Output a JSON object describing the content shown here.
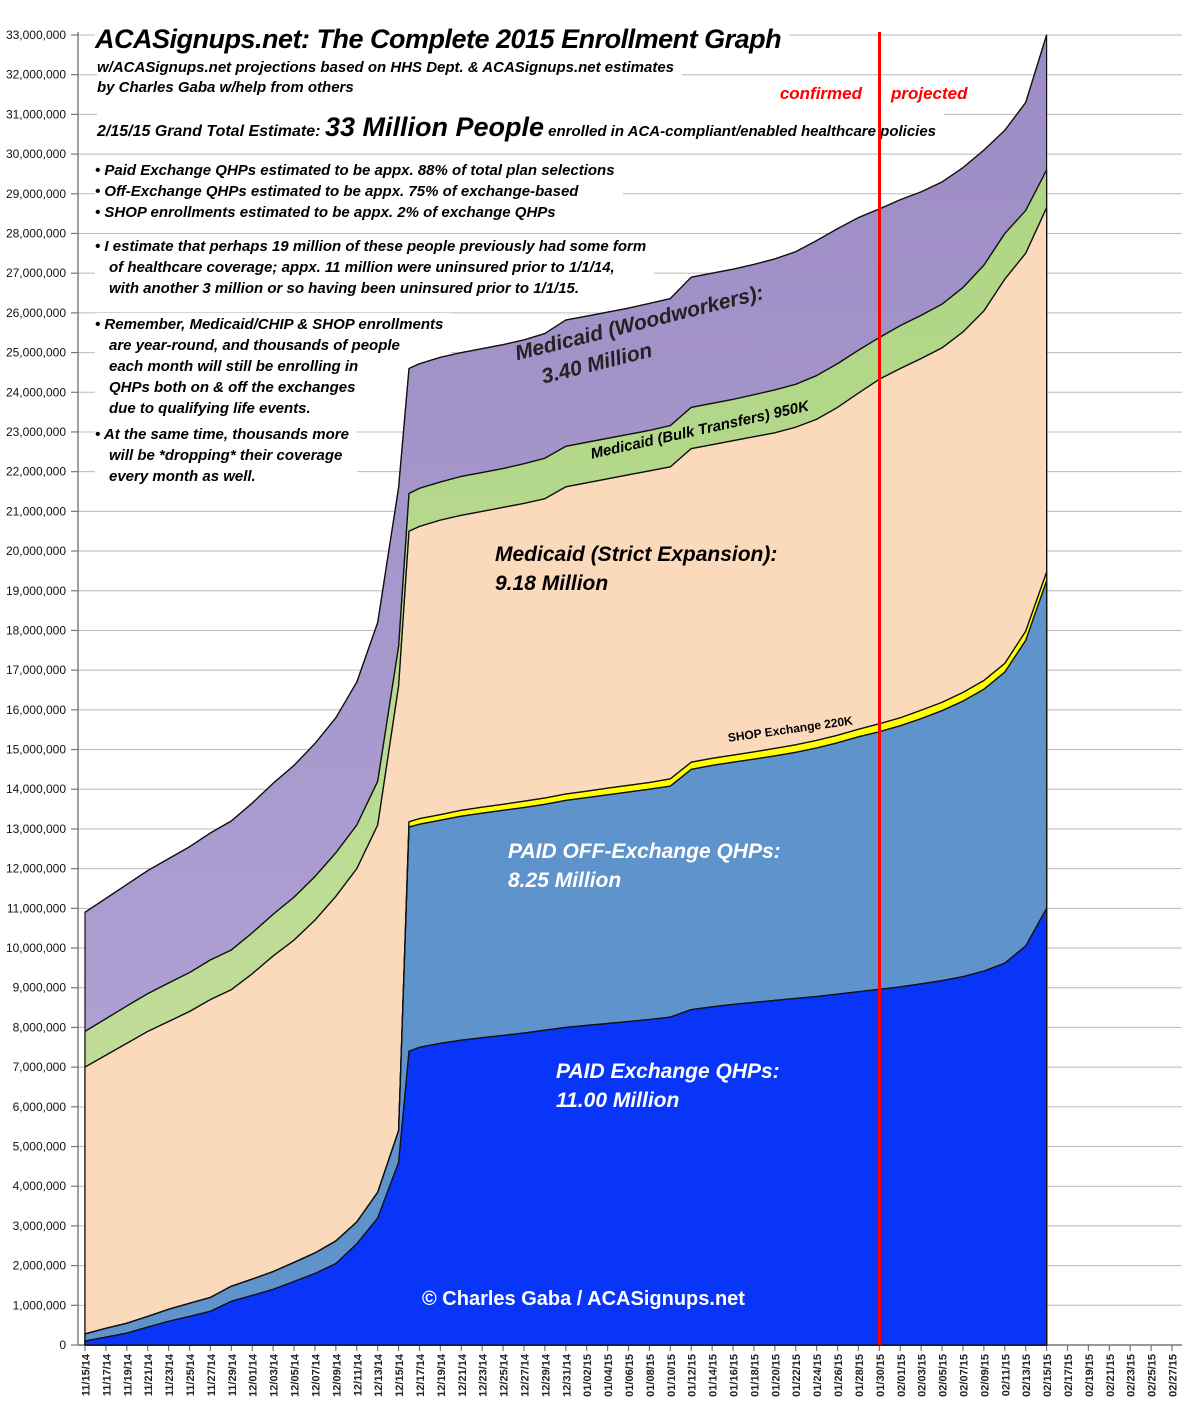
{
  "header": {
    "title": "ACASignups.net: The Complete 2015 Enrollment Graph",
    "subtitle1": "w/ACASignups.net projections based on HHS Dept. & ACASignups.net estimates",
    "subtitle2": "by Charles Gaba w/help from others",
    "confirmed_label": "confirmed",
    "projected_label": "projected",
    "total_prefix": "2/15/15 Grand Total Estimate: ",
    "total_big": "33 Million People",
    "total_suffix": " enrolled in ACA-compliant/enabled healthcare policies"
  },
  "notes": {
    "block1": [
      "• Paid Exchange QHPs estimated to be appx. 88% of total plan selections",
      "• Off-Exchange QHPs estimated to be appx. 75% of exchange-based",
      "• SHOP enrollments estimated to be appx. 2% of exchange QHPs"
    ],
    "block2": [
      "• I estimate that perhaps 19 million of these people previously had some form",
      "of healthcare coverage; appx. 11 million were uninsured prior to 1/1/14,",
      "with another 3 million or so having been uninsured prior to 1/1/15."
    ],
    "block3": [
      "• Remember, Medicaid/CHIP & SHOP enrollments",
      "are year-round, and thousands of people",
      "each month will still be enrolling in",
      "QHPs both on & off the exchanges",
      "due to qualifying life events."
    ],
    "block4": [
      "• At the same time, thousands more",
      "will be *dropping* their coverage",
      "every month as well."
    ]
  },
  "area_labels": {
    "woodworkers_1": "Medicaid (Woodworkers):",
    "woodworkers_2": "3.40 Million",
    "bulk": "Medicaid (Bulk Transfers) 950K",
    "strict_1": "Medicaid (Strict Expansion):",
    "strict_2": "9.18 Million",
    "shop": "SHOP Exchange 220K",
    "off_1": "PAID OFF-Exchange QHPs:",
    "off_2": "8.25 Million",
    "paid_1": "PAID Exchange QHPs:",
    "paid_2": "11.00 Million",
    "copyright": "© Charles Gaba / ACASignups.net"
  },
  "colors": {
    "paid_exchange": "#0835f8",
    "off_exchange": "#5e93cb",
    "shop": "#ffff00",
    "strict_expansion": "#fbdabc",
    "bulk_transfers_top": "#aed584",
    "bulk_transfers_bottom": "#c6e09e",
    "woodworkers_top": "#9c8cc4",
    "woodworkers_bottom": "#b3a6d6",
    "divider_red": "#ff0000",
    "gridline": "#bbbbbb",
    "axis": "#777777",
    "boundary_stroke": "#111111"
  },
  "chart_data": {
    "type": "area",
    "stacked": true,
    "title": "ACASignups.net: The Complete 2015 Enrollment Graph",
    "y_min": 0,
    "y_max": 33000000,
    "y_gridline_step": 1000000,
    "grid": true,
    "confirmed_projected_divider_date": "01/30/15",
    "data_end_date": "02/15/15",
    "x_tick_labels": [
      "11/15/14",
      "11/17/14",
      "11/19/14",
      "11/21/14",
      "11/23/14",
      "11/25/14",
      "11/27/14",
      "11/29/14",
      "12/01/14",
      "12/03/14",
      "12/05/14",
      "12/07/14",
      "12/09/14",
      "12/11/14",
      "12/13/14",
      "12/15/14",
      "12/17/14",
      "12/19/14",
      "12/21/14",
      "12/23/14",
      "12/25/14",
      "12/27/14",
      "12/29/14",
      "12/31/14",
      "01/02/15",
      "01/04/15",
      "01/06/15",
      "01/08/15",
      "01/10/15",
      "01/12/15",
      "01/14/15",
      "01/16/15",
      "01/18/15",
      "01/20/15",
      "01/22/15",
      "01/24/15",
      "01/26/15",
      "01/28/15",
      "01/30/15",
      "02/01/15",
      "02/03/15",
      "02/05/15",
      "02/07/15",
      "02/09/15",
      "02/11/15",
      "02/13/15",
      "02/15/15",
      "02/17/15",
      "02/19/15",
      "02/21/15",
      "02/23/15",
      "02/25/15",
      "02/27/15"
    ],
    "y_tick_labels": [
      "0",
      "1,000,000",
      "2,000,000",
      "3,000,000",
      "4,000,000",
      "5,000,000",
      "6,000,000",
      "7,000,000",
      "8,000,000",
      "9,000,000",
      "10,000,000",
      "11,000,000",
      "12,000,000",
      "13,000,000",
      "14,000,000",
      "15,000,000",
      "16,000,000",
      "17,000,000",
      "18,000,000",
      "19,000,000",
      "20,000,000",
      "21,000,000",
      "22,000,000",
      "23,000,000",
      "24,000,000",
      "25,000,000",
      "26,000,000",
      "27,000,000",
      "28,000,000",
      "29,000,000",
      "30,000,000",
      "31,000,000",
      "32,000,000",
      "33,000,000"
    ],
    "series": [
      {
        "name": "PAID Exchange QHPs",
        "label_value": "11.00 Million",
        "final_millions": 11.0
      },
      {
        "name": "PAID OFF-Exchange QHPs",
        "label_value": "8.25 Million",
        "final_millions": 8.25
      },
      {
        "name": "SHOP Exchange",
        "label_value": "220K",
        "final_millions": 0.22
      },
      {
        "name": "Medicaid (Strict Expansion)",
        "label_value": "9.18 Million",
        "final_millions": 9.18
      },
      {
        "name": "Medicaid (Bulk Transfers)",
        "label_value": "950K",
        "final_millions": 0.95
      },
      {
        "name": "Medicaid (Woodworkers)",
        "label_value": "3.40 Million",
        "final_millions": 3.4
      }
    ],
    "points": {
      "t_days_from_11_15": [
        0,
        2,
        4,
        6,
        8,
        10,
        12,
        14,
        16,
        18,
        20,
        22,
        24,
        26,
        28,
        30,
        31,
        32,
        34,
        36,
        38,
        40,
        42,
        44,
        46,
        48,
        50,
        52,
        54,
        56,
        58,
        60,
        62,
        64,
        66,
        68,
        70,
        72,
        74,
        76,
        78,
        80,
        82,
        84,
        86,
        88,
        90,
        92
      ],
      "divider_t": 76,
      "cumulative_millions": {
        "paid_exchange": [
          0.1,
          0.2,
          0.3,
          0.45,
          0.6,
          0.72,
          0.85,
          1.1,
          1.25,
          1.4,
          1.6,
          1.8,
          2.05,
          2.55,
          3.2,
          4.6,
          7.4,
          7.5,
          7.6,
          7.68,
          7.74,
          7.8,
          7.86,
          7.93,
          8.0,
          8.05,
          8.1,
          8.15,
          8.2,
          8.26,
          8.45,
          8.52,
          8.58,
          8.63,
          8.68,
          8.73,
          8.78,
          8.84,
          8.9,
          8.96,
          9.02,
          9.1,
          9.18,
          9.28,
          9.42,
          9.62,
          10.05,
          11.0
        ],
        "plus_off_exchange": [
          0.28,
          0.42,
          0.55,
          0.72,
          0.9,
          1.05,
          1.2,
          1.48,
          1.66,
          1.85,
          2.08,
          2.32,
          2.62,
          3.1,
          3.85,
          5.4,
          13.05,
          13.12,
          13.22,
          13.32,
          13.4,
          13.47,
          13.54,
          13.62,
          13.72,
          13.79,
          13.86,
          13.93,
          14.0,
          14.08,
          14.5,
          14.6,
          14.68,
          14.76,
          14.84,
          14.93,
          15.04,
          15.17,
          15.32,
          15.45,
          15.6,
          15.78,
          15.98,
          16.22,
          16.52,
          16.95,
          17.75,
          19.25
        ],
        "plus_shop": [
          0.28,
          0.42,
          0.55,
          0.72,
          0.9,
          1.05,
          1.2,
          1.48,
          1.66,
          1.85,
          2.08,
          2.32,
          2.62,
          3.1,
          3.85,
          5.4,
          13.18,
          13.26,
          13.36,
          13.47,
          13.55,
          13.62,
          13.7,
          13.78,
          13.88,
          13.95,
          14.03,
          14.1,
          14.17,
          14.26,
          14.68,
          14.78,
          14.86,
          14.94,
          15.03,
          15.12,
          15.23,
          15.36,
          15.51,
          15.65,
          15.8,
          15.99,
          16.19,
          16.44,
          16.74,
          17.17,
          17.98,
          19.47
        ],
        "plus_strict_expansion": [
          7.0,
          7.3,
          7.6,
          7.9,
          8.15,
          8.4,
          8.7,
          8.95,
          9.35,
          9.8,
          10.2,
          10.7,
          11.3,
          12.0,
          13.1,
          16.6,
          20.5,
          20.62,
          20.78,
          20.9,
          21.0,
          21.1,
          21.2,
          21.32,
          21.62,
          21.72,
          21.82,
          21.92,
          22.02,
          22.12,
          22.58,
          22.68,
          22.78,
          22.88,
          22.98,
          23.12,
          23.32,
          23.62,
          23.98,
          24.33,
          24.6,
          24.85,
          25.12,
          25.52,
          26.05,
          26.85,
          27.5,
          28.65
        ],
        "plus_bulk_transfers": [
          7.9,
          8.22,
          8.54,
          8.85,
          9.12,
          9.38,
          9.7,
          9.95,
          10.38,
          10.85,
          11.28,
          11.8,
          12.4,
          13.1,
          14.2,
          17.6,
          21.45,
          21.58,
          21.74,
          21.88,
          21.98,
          22.08,
          22.2,
          22.34,
          22.64,
          22.74,
          22.84,
          22.94,
          23.04,
          23.16,
          23.62,
          23.72,
          23.82,
          23.94,
          24.06,
          24.2,
          24.42,
          24.72,
          25.06,
          25.38,
          25.68,
          25.94,
          26.22,
          26.64,
          27.2,
          28.0,
          28.58,
          29.6
        ],
        "plus_woodworkers": [
          10.9,
          11.25,
          11.6,
          11.95,
          12.25,
          12.55,
          12.9,
          13.2,
          13.65,
          14.15,
          14.6,
          15.15,
          15.8,
          16.7,
          18.2,
          21.6,
          24.6,
          24.72,
          24.88,
          25.0,
          25.1,
          25.2,
          25.32,
          25.48,
          25.82,
          25.92,
          26.02,
          26.12,
          26.24,
          26.36,
          26.9,
          27.0,
          27.1,
          27.22,
          27.36,
          27.54,
          27.82,
          28.12,
          28.4,
          28.62,
          28.85,
          29.05,
          29.3,
          29.66,
          30.1,
          30.6,
          31.3,
          33.0
        ]
      }
    }
  }
}
